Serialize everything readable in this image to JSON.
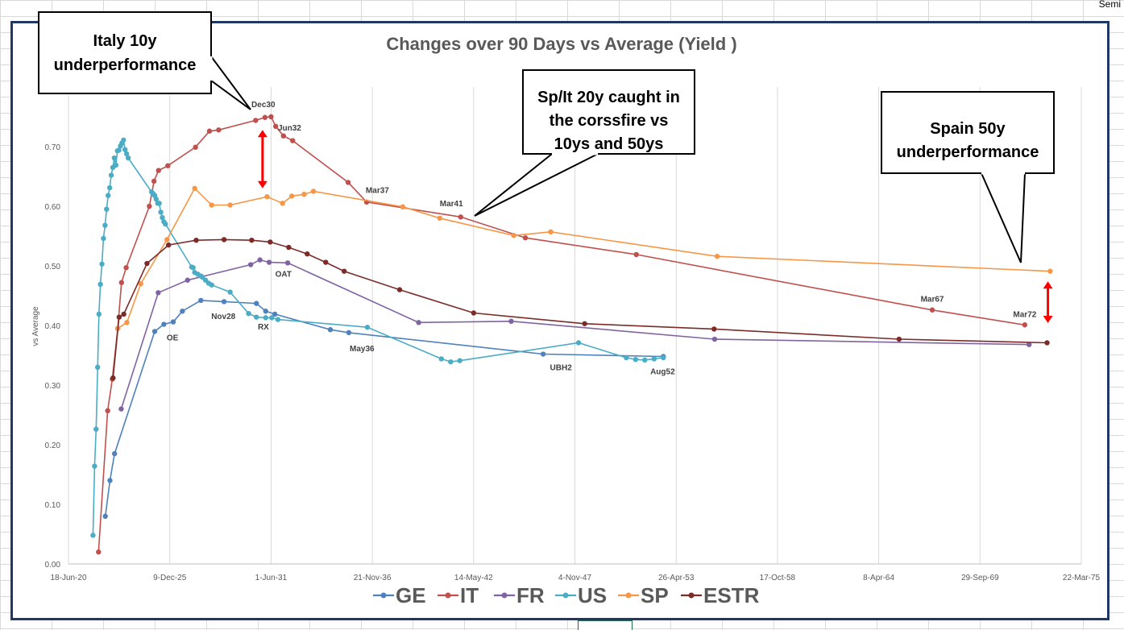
{
  "sheet": {
    "top_right_fragment": "Semi"
  },
  "chart_data": {
    "type": "line",
    "title": "Changes over 90 Days vs Average (Yield )",
    "ylabel": "vs Average",
    "xlabel": "",
    "ylim": [
      0,
      0.77
    ],
    "yticks": [
      "0.00",
      "0.10",
      "0.20",
      "0.30",
      "0.40",
      "0.50",
      "0.60",
      "0.70"
    ],
    "xlim": [
      "2020-06-18",
      "2075-03-22"
    ],
    "xticks": [
      "18-Jun-20",
      "9-Dec-25",
      "1-Jun-31",
      "21-Nov-36",
      "14-May-42",
      "4-Nov-47",
      "26-Apr-53",
      "17-Oct-58",
      "8-Apr-64",
      "29-Sep-69",
      "22-Mar-75"
    ],
    "grid": "vertical",
    "legend": "bottom",
    "series": [
      {
        "name": "GE",
        "color": "#4f81bd",
        "points": [
          [
            "2022-06-15",
            0.08
          ],
          [
            "2022-09-15",
            0.14
          ],
          [
            "2022-12-15",
            0.185
          ],
          [
            "2025-02-15",
            0.39
          ],
          [
            "2025-08-15",
            0.402
          ],
          [
            "2026-02-15",
            0.406
          ],
          [
            "2026-08-15",
            0.424
          ],
          [
            "2027-08-15",
            0.442
          ],
          [
            "2028-11-15",
            0.44
          ],
          [
            "2030-08-15",
            0.437
          ],
          [
            "2031-02-15",
            0.424
          ],
          [
            "2031-08-15",
            0.419
          ],
          [
            "2034-08-15",
            0.393
          ],
          [
            "2035-08-15",
            0.388
          ],
          [
            "2046-02-15",
            0.352
          ],
          [
            "2052-08-15",
            0.348
          ]
        ]
      },
      {
        "name": "IT",
        "color": "#c0504d",
        "points": [
          [
            "2022-02-01",
            0.02
          ],
          [
            "2022-08-01",
            0.257
          ],
          [
            "2022-11-01",
            0.31
          ],
          [
            "2023-02-15",
            0.395
          ],
          [
            "2023-05-01",
            0.472
          ],
          [
            "2023-08-01",
            0.497
          ],
          [
            "2024-11-01",
            0.6
          ],
          [
            "2025-02-01",
            0.642
          ],
          [
            "2025-05-01",
            0.66
          ],
          [
            "2025-11-01",
            0.668
          ],
          [
            "2027-05-01",
            0.699
          ],
          [
            "2028-02-01",
            0.726
          ],
          [
            "2028-08-01",
            0.728
          ],
          [
            "2030-08-01",
            0.744
          ],
          [
            "2031-02-01",
            0.749
          ],
          [
            "2031-06-01",
            0.75
          ],
          [
            "2031-09-01",
            0.734
          ],
          [
            "2032-02-01",
            0.718
          ],
          [
            "2032-08-01",
            0.71
          ],
          [
            "2035-08-01",
            0.64
          ],
          [
            "2036-08-01",
            0.607
          ],
          [
            "2041-09-01",
            0.582
          ],
          [
            "2045-03-01",
            0.547
          ],
          [
            "2051-03-01",
            0.519
          ],
          [
            "2067-03-01",
            0.426
          ],
          [
            "2072-03-01",
            0.401
          ]
        ]
      },
      {
        "name": "FR",
        "color": "#8064a2",
        "points": [
          [
            "2023-04-25",
            0.26
          ],
          [
            "2025-04-25",
            0.455
          ],
          [
            "2026-11-25",
            0.476
          ],
          [
            "2030-04-25",
            0.502
          ],
          [
            "2030-10-25",
            0.51
          ],
          [
            "2031-04-25",
            0.506
          ],
          [
            "2032-04-25",
            0.505
          ],
          [
            "2039-05-25",
            0.405
          ],
          [
            "2044-05-25",
            0.407
          ],
          [
            "2055-05-25",
            0.377
          ],
          [
            "2072-05-25",
            0.368
          ]
        ]
      },
      {
        "name": "US",
        "color": "#4bacc6",
        "points": [
          [
            "2021-10-15",
            0.048
          ],
          [
            "2021-11-15",
            0.164
          ],
          [
            "2021-12-15",
            0.226
          ],
          [
            "2022-01-15",
            0.33
          ],
          [
            "2022-02-10",
            0.419
          ],
          [
            "2022-03-10",
            0.469
          ],
          [
            "2022-04-10",
            0.503
          ],
          [
            "2022-05-10",
            0.546
          ],
          [
            "2022-06-10",
            0.568
          ],
          [
            "2022-07-10",
            0.595
          ],
          [
            "2022-08-10",
            0.618
          ],
          [
            "2022-09-10",
            0.631
          ],
          [
            "2022-10-10",
            0.652
          ],
          [
            "2022-11-10",
            0.665
          ],
          [
            "2022-12-10",
            0.681
          ],
          [
            "2023-01-10",
            0.669
          ],
          [
            "2023-02-10",
            0.693
          ],
          [
            "2023-03-10",
            0.694
          ],
          [
            "2023-04-10",
            0.701
          ],
          [
            "2023-05-10",
            0.706
          ],
          [
            "2023-06-10",
            0.711
          ],
          [
            "2023-07-10",
            0.695
          ],
          [
            "2023-08-10",
            0.688
          ],
          [
            "2023-09-10",
            0.681
          ],
          [
            "2024-12-15",
            0.624
          ],
          [
            "2025-01-15",
            0.621
          ],
          [
            "2025-02-15",
            0.618
          ],
          [
            "2025-03-15",
            0.612
          ],
          [
            "2025-04-15",
            0.605
          ],
          [
            "2025-05-15",
            0.605
          ],
          [
            "2025-06-15",
            0.59
          ],
          [
            "2025-07-15",
            0.581
          ],
          [
            "2025-08-15",
            0.574
          ],
          [
            "2025-09-15",
            0.57
          ],
          [
            "2027-02-15",
            0.498
          ],
          [
            "2027-03-15",
            0.497
          ],
          [
            "2027-04-15",
            0.489
          ],
          [
            "2027-06-15",
            0.486
          ],
          [
            "2027-08-15",
            0.483
          ],
          [
            "2027-09-15",
            0.481
          ],
          [
            "2027-11-15",
            0.476
          ],
          [
            "2028-01-15",
            0.471
          ],
          [
            "2028-03-15",
            0.468
          ],
          [
            "2029-03-15",
            0.456
          ],
          [
            "2030-03-15",
            0.42
          ],
          [
            "2030-08-15",
            0.414
          ],
          [
            "2031-02-15",
            0.413
          ],
          [
            "2031-06-15",
            0.413
          ],
          [
            "2031-10-15",
            0.41
          ],
          [
            "2036-08-15",
            0.397
          ],
          [
            "2040-08-15",
            0.344
          ],
          [
            "2041-02-15",
            0.339
          ],
          [
            "2041-08-15",
            0.341
          ],
          [
            "2048-01-15",
            0.371
          ],
          [
            "2050-08-15",
            0.346
          ],
          [
            "2051-02-15",
            0.343
          ],
          [
            "2051-08-15",
            0.342
          ],
          [
            "2052-02-15",
            0.344
          ],
          [
            "2052-08-15",
            0.346
          ]
        ]
      },
      {
        "name": "SP",
        "color": "#f79646",
        "points": [
          [
            "2023-02-15",
            0.395
          ],
          [
            "2023-08-15",
            0.405
          ],
          [
            "2024-05-15",
            0.47
          ],
          [
            "2025-10-15",
            0.544
          ],
          [
            "2027-04-15",
            0.63
          ],
          [
            "2028-03-15",
            0.602
          ],
          [
            "2029-03-15",
            0.602
          ],
          [
            "2031-03-15",
            0.616
          ],
          [
            "2032-01-15",
            0.605
          ],
          [
            "2032-07-15",
            0.617
          ],
          [
            "2033-03-15",
            0.62
          ],
          [
            "2033-09-15",
            0.625
          ],
          [
            "2038-07-15",
            0.599
          ],
          [
            "2040-07-15",
            0.58
          ],
          [
            "2044-07-15",
            0.551
          ],
          [
            "2046-07-15",
            0.557
          ],
          [
            "2055-07-15",
            0.516
          ],
          [
            "2073-07-15",
            0.491
          ]
        ]
      },
      {
        "name": "ESTR",
        "color": "#7b2c28",
        "points": [
          [
            "2022-11-15",
            0.312
          ],
          [
            "2023-03-15",
            0.414
          ],
          [
            "2023-06-15",
            0.419
          ],
          [
            "2024-09-15",
            0.504
          ],
          [
            "2025-11-15",
            0.535
          ],
          [
            "2027-05-15",
            0.543
          ],
          [
            "2028-11-15",
            0.544
          ],
          [
            "2030-05-15",
            0.543
          ],
          [
            "2031-05-15",
            0.54
          ],
          [
            "2032-05-15",
            0.531
          ],
          [
            "2033-05-15",
            0.52
          ],
          [
            "2034-05-15",
            0.506
          ],
          [
            "2035-05-15",
            0.491
          ],
          [
            "2038-05-15",
            0.46
          ],
          [
            "2042-05-15",
            0.421
          ],
          [
            "2048-05-15",
            0.403
          ],
          [
            "2055-05-15",
            0.394
          ],
          [
            "2065-05-15",
            0.377
          ],
          [
            "2073-05-15",
            0.371
          ]
        ]
      }
    ],
    "point_labels": [
      {
        "text": "Dec30",
        "x": "2030-12-30",
        "y": 0.766
      },
      {
        "text": "Jun32",
        "x": "2032-06-01",
        "y": 0.727
      },
      {
        "text": "Mar37",
        "x": "2037-03-01",
        "y": 0.622
      },
      {
        "text": "Mar41",
        "x": "2041-03-01",
        "y": 0.6
      },
      {
        "text": "OAT",
        "x": "2032-02-01",
        "y": 0.482
      },
      {
        "text": "OE",
        "x": "2026-02-01",
        "y": 0.375
      },
      {
        "text": "Nov28",
        "x": "2028-11-01",
        "y": 0.411
      },
      {
        "text": "RX",
        "x": "2031-01-01",
        "y": 0.393
      },
      {
        "text": "May36",
        "x": "2036-05-01",
        "y": 0.357
      },
      {
        "text": "UBH2",
        "x": "2047-02-01",
        "y": 0.325
      },
      {
        "text": "Aug52",
        "x": "2052-08-01",
        "y": 0.318
      },
      {
        "text": "Mar67",
        "x": "2067-03-01",
        "y": 0.44
      },
      {
        "text": "Mar72",
        "x": "2072-03-01",
        "y": 0.414
      }
    ],
    "annotations": [
      {
        "text": [
          "Italy 10y",
          "underperformance"
        ]
      },
      {
        "text": [
          "Sp/It 20y caught in",
          "the corssfire vs",
          "10ys and 50ys"
        ]
      },
      {
        "text": [
          "Spain 50y",
          "underperformance"
        ]
      }
    ],
    "arrows": [
      {
        "x": "2030-12-15",
        "y1": 0.63,
        "y2": 0.728,
        "color": "#ff0000"
      },
      {
        "x": "2073-06-01",
        "y1": 0.404,
        "y2": 0.474,
        "color": "#ff0000"
      }
    ]
  }
}
